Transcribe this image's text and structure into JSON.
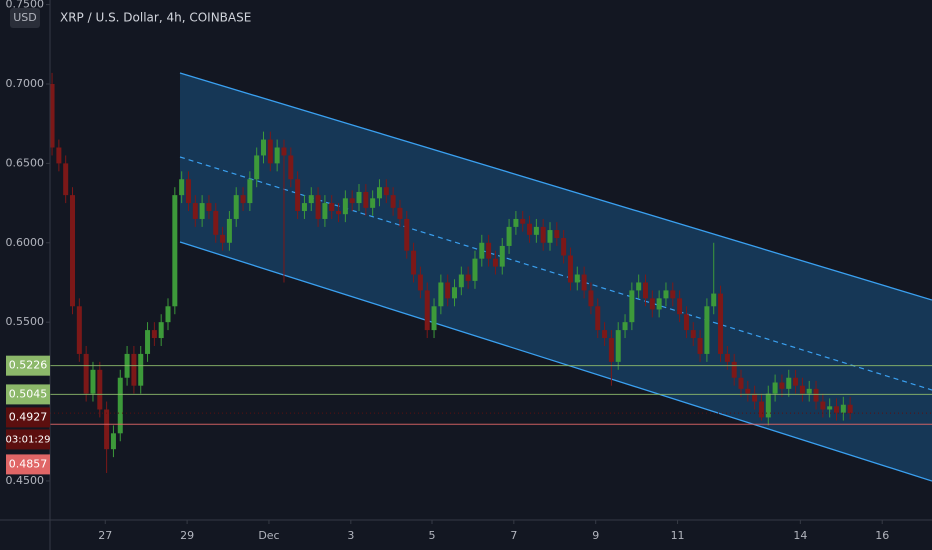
{
  "chart_data": {
    "type": "candlestick",
    "title": "XRP / U.S. Dollar, 4h, COINBASE",
    "currency": "USD",
    "up_color": "#3d9a3a",
    "down_color": "#7c1818",
    "ylim": [
      0.4254,
      0.7529
    ],
    "yticks": [
      {
        "value": 0.75,
        "label": "0.7500"
      },
      {
        "value": 0.7,
        "label": "0.7000"
      },
      {
        "value": 0.65,
        "label": "0.6500"
      },
      {
        "value": 0.6,
        "label": "0.6000"
      },
      {
        "value": 0.55,
        "label": "0.5500"
      },
      {
        "value": 0.45,
        "label": "0.4500"
      }
    ],
    "xlim": [
      -0.3,
      129
    ],
    "xticks": [
      {
        "value": 7.8,
        "label": "27"
      },
      {
        "value": 19.8,
        "label": "29"
      },
      {
        "value": 31.8,
        "label": "Dec"
      },
      {
        "value": 43.8,
        "label": "3"
      },
      {
        "value": 55.7,
        "label": "5"
      },
      {
        "value": 67.7,
        "label": "7"
      },
      {
        "value": 79.7,
        "label": "9"
      },
      {
        "value": 91.7,
        "label": "11"
      },
      {
        "value": 109.7,
        "label": "14"
      },
      {
        "value": 121.7,
        "label": "16"
      }
    ],
    "open": [
      0.7,
      0.66,
      0.65,
      0.63,
      0.56,
      0.53,
      0.505,
      0.52,
      0.495,
      0.47,
      0.48,
      0.515,
      0.53,
      0.51,
      0.53,
      0.545,
      0.54,
      0.55,
      0.56,
      0.63,
      0.64,
      0.625,
      0.615,
      0.625,
      0.62,
      0.605,
      0.6,
      0.615,
      0.63,
      0.625,
      0.64,
      0.655,
      0.665,
      0.65,
      0.66,
      0.655,
      0.64,
      0.62,
      0.625,
      0.63,
      0.615,
      0.625,
      0.62,
      0.618,
      0.628,
      0.625,
      0.632,
      0.622,
      0.628,
      0.635,
      0.63,
      0.622,
      0.615,
      0.595,
      0.58,
      0.57,
      0.545,
      0.56,
      0.575,
      0.565,
      0.572,
      0.58,
      0.576,
      0.59,
      0.6,
      0.59,
      0.585,
      0.598,
      0.61,
      0.615,
      0.612,
      0.605,
      0.61,
      0.6,
      0.608,
      0.603,
      0.592,
      0.575,
      0.58,
      0.57,
      0.56,
      0.545,
      0.54,
      0.525,
      0.545,
      0.55,
      0.57,
      0.575,
      0.565,
      0.558,
      0.565,
      0.57,
      0.565,
      0.555,
      0.545,
      0.54,
      0.53,
      0.56,
      0.568,
      0.53,
      0.525,
      0.515,
      0.508,
      0.505,
      0.5,
      0.49,
      0.505,
      0.512,
      0.508,
      0.515,
      0.51,
      0.505,
      0.508,
      0.5,
      0.495,
      0.497,
      0.493,
      0.498
    ],
    "high": [
      0.707,
      0.665,
      0.655,
      0.635,
      0.565,
      0.535,
      0.525,
      0.525,
      0.5,
      0.485,
      0.52,
      0.535,
      0.535,
      0.535,
      0.55,
      0.55,
      0.555,
      0.565,
      0.635,
      0.645,
      0.645,
      0.63,
      0.63,
      0.63,
      0.625,
      0.61,
      0.62,
      0.635,
      0.635,
      0.645,
      0.66,
      0.67,
      0.67,
      0.665,
      0.665,
      0.66,
      0.645,
      0.63,
      0.635,
      0.635,
      0.63,
      0.63,
      0.625,
      0.633,
      0.633,
      0.637,
      0.637,
      0.633,
      0.64,
      0.64,
      0.635,
      0.627,
      0.62,
      0.6,
      0.585,
      0.575,
      0.565,
      0.58,
      0.58,
      0.577,
      0.585,
      0.585,
      0.595,
      0.605,
      0.605,
      0.595,
      0.603,
      0.615,
      0.62,
      0.62,
      0.617,
      0.615,
      0.615,
      0.613,
      0.613,
      0.608,
      0.597,
      0.585,
      0.585,
      0.575,
      0.565,
      0.55,
      0.545,
      0.55,
      0.555,
      0.575,
      0.58,
      0.58,
      0.57,
      0.57,
      0.575,
      0.575,
      0.57,
      0.56,
      0.55,
      0.545,
      0.565,
      0.6,
      0.573,
      0.535,
      0.53,
      0.52,
      0.513,
      0.51,
      0.505,
      0.51,
      0.517,
      0.517,
      0.52,
      0.52,
      0.515,
      0.513,
      0.513,
      0.505,
      0.502,
      0.502,
      0.503,
      0.503
    ],
    "low": [
      0.655,
      0.645,
      0.625,
      0.555,
      0.525,
      0.5,
      0.5,
      0.49,
      0.455,
      0.465,
      0.475,
      0.51,
      0.505,
      0.505,
      0.525,
      0.535,
      0.535,
      0.545,
      0.555,
      0.625,
      0.62,
      0.61,
      0.61,
      0.615,
      0.6,
      0.595,
      0.595,
      0.61,
      0.62,
      0.62,
      0.635,
      0.65,
      0.645,
      0.645,
      0.575,
      0.635,
      0.615,
      0.615,
      0.62,
      0.61,
      0.61,
      0.615,
      0.613,
      0.613,
      0.62,
      0.62,
      0.617,
      0.617,
      0.623,
      0.625,
      0.617,
      0.61,
      0.59,
      0.575,
      0.565,
      0.54,
      0.54,
      0.555,
      0.56,
      0.56,
      0.567,
      0.571,
      0.571,
      0.585,
      0.585,
      0.58,
      0.58,
      0.593,
      0.605,
      0.607,
      0.6,
      0.6,
      0.595,
      0.595,
      0.598,
      0.587,
      0.57,
      0.57,
      0.565,
      0.555,
      0.54,
      0.535,
      0.51,
      0.52,
      0.54,
      0.545,
      0.565,
      0.56,
      0.553,
      0.553,
      0.56,
      0.56,
      0.55,
      0.54,
      0.535,
      0.525,
      0.525,
      0.555,
      0.525,
      0.52,
      0.51,
      0.503,
      0.5,
      0.495,
      0.488,
      0.485,
      0.5,
      0.503,
      0.503,
      0.505,
      0.5,
      0.5,
      0.495,
      0.49,
      0.49,
      0.488,
      0.488,
      0.4887
    ],
    "close": [
      0.66,
      0.65,
      0.63,
      0.56,
      0.53,
      0.505,
      0.52,
      0.495,
      0.47,
      0.48,
      0.515,
      0.53,
      0.51,
      0.53,
      0.545,
      0.54,
      0.55,
      0.56,
      0.63,
      0.64,
      0.625,
      0.615,
      0.625,
      0.62,
      0.605,
      0.6,
      0.615,
      0.63,
      0.625,
      0.64,
      0.655,
      0.665,
      0.65,
      0.66,
      0.655,
      0.64,
      0.62,
      0.625,
      0.63,
      0.615,
      0.625,
      0.62,
      0.618,
      0.628,
      0.625,
      0.632,
      0.622,
      0.628,
      0.635,
      0.63,
      0.622,
      0.615,
      0.595,
      0.58,
      0.57,
      0.545,
      0.56,
      0.575,
      0.565,
      0.572,
      0.58,
      0.576,
      0.59,
      0.6,
      0.59,
      0.585,
      0.598,
      0.61,
      0.615,
      0.612,
      0.605,
      0.61,
      0.6,
      0.608,
      0.603,
      0.592,
      0.575,
      0.58,
      0.57,
      0.56,
      0.545,
      0.54,
      0.525,
      0.545,
      0.55,
      0.57,
      0.575,
      0.565,
      0.558,
      0.565,
      0.57,
      0.565,
      0.555,
      0.545,
      0.54,
      0.53,
      0.56,
      0.568,
      0.53,
      0.525,
      0.515,
      0.508,
      0.505,
      0.5,
      0.49,
      0.505,
      0.512,
      0.508,
      0.515,
      0.51,
      0.505,
      0.508,
      0.5,
      0.495,
      0.497,
      0.493,
      0.498,
      0.4927
    ],
    "price_lines": [
      {
        "value": 0.5226,
        "label": "0.5226",
        "color": "#8cb86a"
      },
      {
        "value": 0.5045,
        "label": "0.5045",
        "color": "#8cb86a"
      },
      {
        "value": 0.4927,
        "label": "0.4927",
        "color": "#5c0f0f",
        "countdown": "03:01:29"
      },
      {
        "value": 0.4857,
        "label": "0.4857",
        "color": "#e06666"
      }
    ]
  }
}
